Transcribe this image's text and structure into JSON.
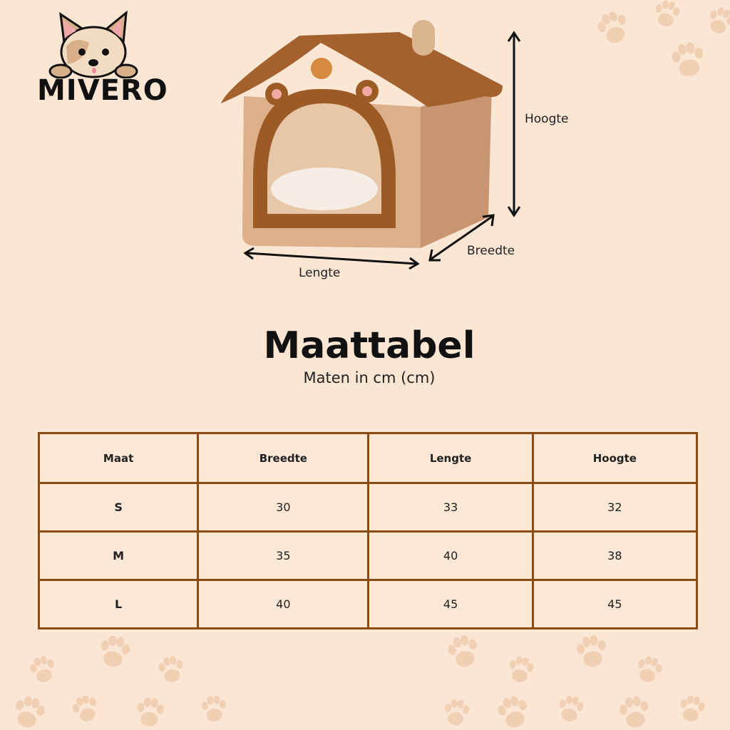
{
  "brand": {
    "name": "MIVERO"
  },
  "dimensions": {
    "height_label": "Hoogte",
    "width_label": "Breedte",
    "length_label": "Lengte"
  },
  "heading": {
    "title": "Maattabel",
    "subtitle": "Maten in cm (cm)"
  },
  "table": {
    "headers": [
      "Maat",
      "Breedte",
      "Lengte",
      "Hoogte"
    ],
    "rows": [
      [
        "S",
        "30",
        "33",
        "32"
      ],
      [
        "M",
        "35",
        "40",
        "38"
      ],
      [
        "L",
        "40",
        "45",
        "45"
      ]
    ]
  },
  "colors": {
    "background": "#fbe5d3",
    "table_border": "#8c4a14",
    "house_body": "#d9ab85",
    "house_roof": "#a5612d"
  }
}
